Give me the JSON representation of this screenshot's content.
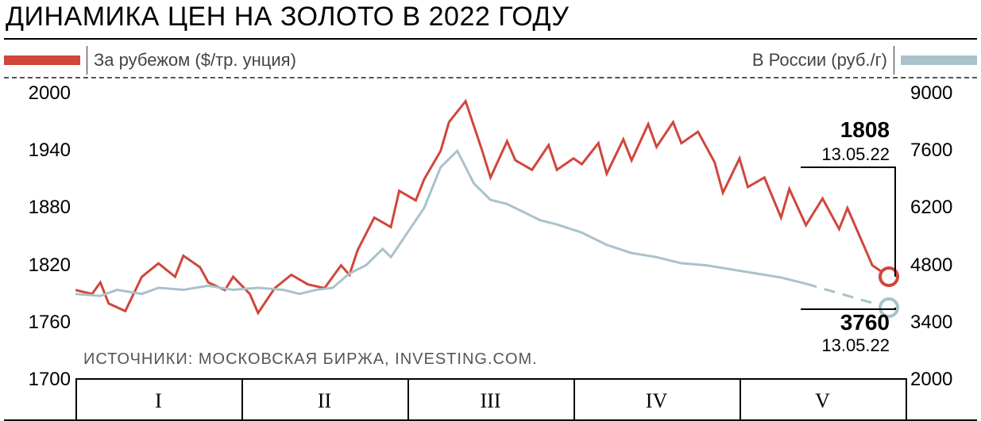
{
  "title": "ДИНАМИКА ЦЕН НА ЗОЛОТО В 2022 ГОДУ",
  "legend": {
    "left_label": "За рубежом ($/тр. унция)",
    "right_label": "В России (руб./г)",
    "left_color": "#d0463c",
    "right_color": "#a9c2cb"
  },
  "source_label": "ИСТОЧНИКИ: МОСКОВСКАЯ БИРЖА, INVESTING.COM.",
  "chart": {
    "type": "line-dual-axis",
    "background_color": "#ffffff",
    "line_width": 3,
    "marker_radius": 9,
    "axis_left": {
      "min": 1700,
      "max": 2000,
      "ticks": [
        1700,
        1760,
        1820,
        1880,
        1940,
        2000
      ]
    },
    "axis_right": {
      "min": 2000,
      "max": 9000,
      "ticks": [
        2000,
        3400,
        4800,
        6200,
        7600,
        9000
      ]
    },
    "x_sections": [
      "I",
      "II",
      "III",
      "IV",
      "V"
    ],
    "x_domain": [
      0,
      100
    ],
    "series": [
      {
        "name": "abroad_usd_troz",
        "color": "#d0463c",
        "axis": "left",
        "points": [
          [
            0,
            1794
          ],
          [
            2,
            1790
          ],
          [
            3,
            1802
          ],
          [
            4,
            1780
          ],
          [
            6,
            1772
          ],
          [
            8,
            1808
          ],
          [
            10,
            1822
          ],
          [
            12,
            1808
          ],
          [
            13,
            1830
          ],
          [
            15,
            1818
          ],
          [
            16,
            1802
          ],
          [
            18,
            1794
          ],
          [
            19,
            1808
          ],
          [
            21,
            1790
          ],
          [
            22,
            1770
          ],
          [
            24,
            1796
          ],
          [
            26,
            1810
          ],
          [
            28,
            1800
          ],
          [
            30,
            1796
          ],
          [
            32,
            1820
          ],
          [
            33,
            1810
          ],
          [
            34,
            1836
          ],
          [
            36,
            1870
          ],
          [
            38,
            1860
          ],
          [
            39,
            1898
          ],
          [
            41,
            1888
          ],
          [
            42,
            1910
          ],
          [
            44,
            1940
          ],
          [
            45,
            1970
          ],
          [
            47,
            1992
          ],
          [
            49,
            1940
          ],
          [
            50,
            1912
          ],
          [
            52,
            1950
          ],
          [
            53,
            1930
          ],
          [
            55,
            1920
          ],
          [
            57,
            1946
          ],
          [
            58,
            1920
          ],
          [
            60,
            1932
          ],
          [
            61,
            1926
          ],
          [
            63,
            1948
          ],
          [
            64,
            1916
          ],
          [
            66,
            1952
          ],
          [
            67,
            1930
          ],
          [
            69,
            1968
          ],
          [
            70,
            1944
          ],
          [
            72,
            1970
          ],
          [
            73,
            1948
          ],
          [
            75,
            1960
          ],
          [
            77,
            1928
          ],
          [
            78,
            1896
          ],
          [
            80,
            1932
          ],
          [
            81,
            1902
          ],
          [
            83,
            1912
          ],
          [
            85,
            1870
          ],
          [
            86,
            1900
          ],
          [
            88,
            1862
          ],
          [
            90,
            1890
          ],
          [
            92,
            1858
          ],
          [
            93,
            1880
          ],
          [
            96,
            1820
          ],
          [
            98,
            1808
          ]
        ],
        "end_value_label": "1808",
        "end_date_label": "13.05.22"
      },
      {
        "name": "russia_rub_g",
        "color": "#a9c2cb",
        "axis": "right",
        "points": [
          [
            0,
            4100
          ],
          [
            3,
            4050
          ],
          [
            5,
            4200
          ],
          [
            8,
            4100
          ],
          [
            10,
            4250
          ],
          [
            13,
            4200
          ],
          [
            16,
            4300
          ],
          [
            19,
            4200
          ],
          [
            22,
            4250
          ],
          [
            25,
            4200
          ],
          [
            27,
            4100
          ],
          [
            29,
            4200
          ],
          [
            31,
            4250
          ],
          [
            33,
            4600
          ],
          [
            35,
            4800
          ],
          [
            37,
            5200
          ],
          [
            38,
            5000
          ],
          [
            40,
            5600
          ],
          [
            42,
            6200
          ],
          [
            44,
            7200
          ],
          [
            46,
            7600
          ],
          [
            48,
            6800
          ],
          [
            50,
            6400
          ],
          [
            52,
            6300
          ],
          [
            54,
            6100
          ],
          [
            56,
            5900
          ],
          [
            58,
            5800
          ],
          [
            61,
            5600
          ],
          [
            64,
            5300
          ],
          [
            67,
            5100
          ],
          [
            70,
            5000
          ],
          [
            73,
            4850
          ],
          [
            76,
            4800
          ],
          [
            79,
            4700
          ],
          [
            82,
            4600
          ],
          [
            85,
            4500
          ],
          [
            88,
            4350
          ]
        ],
        "gap_points": [
          [
            88,
            4350
          ],
          [
            98,
            3760
          ]
        ],
        "end_value_label": "3760",
        "end_date_label": "13.05.22"
      }
    ]
  }
}
